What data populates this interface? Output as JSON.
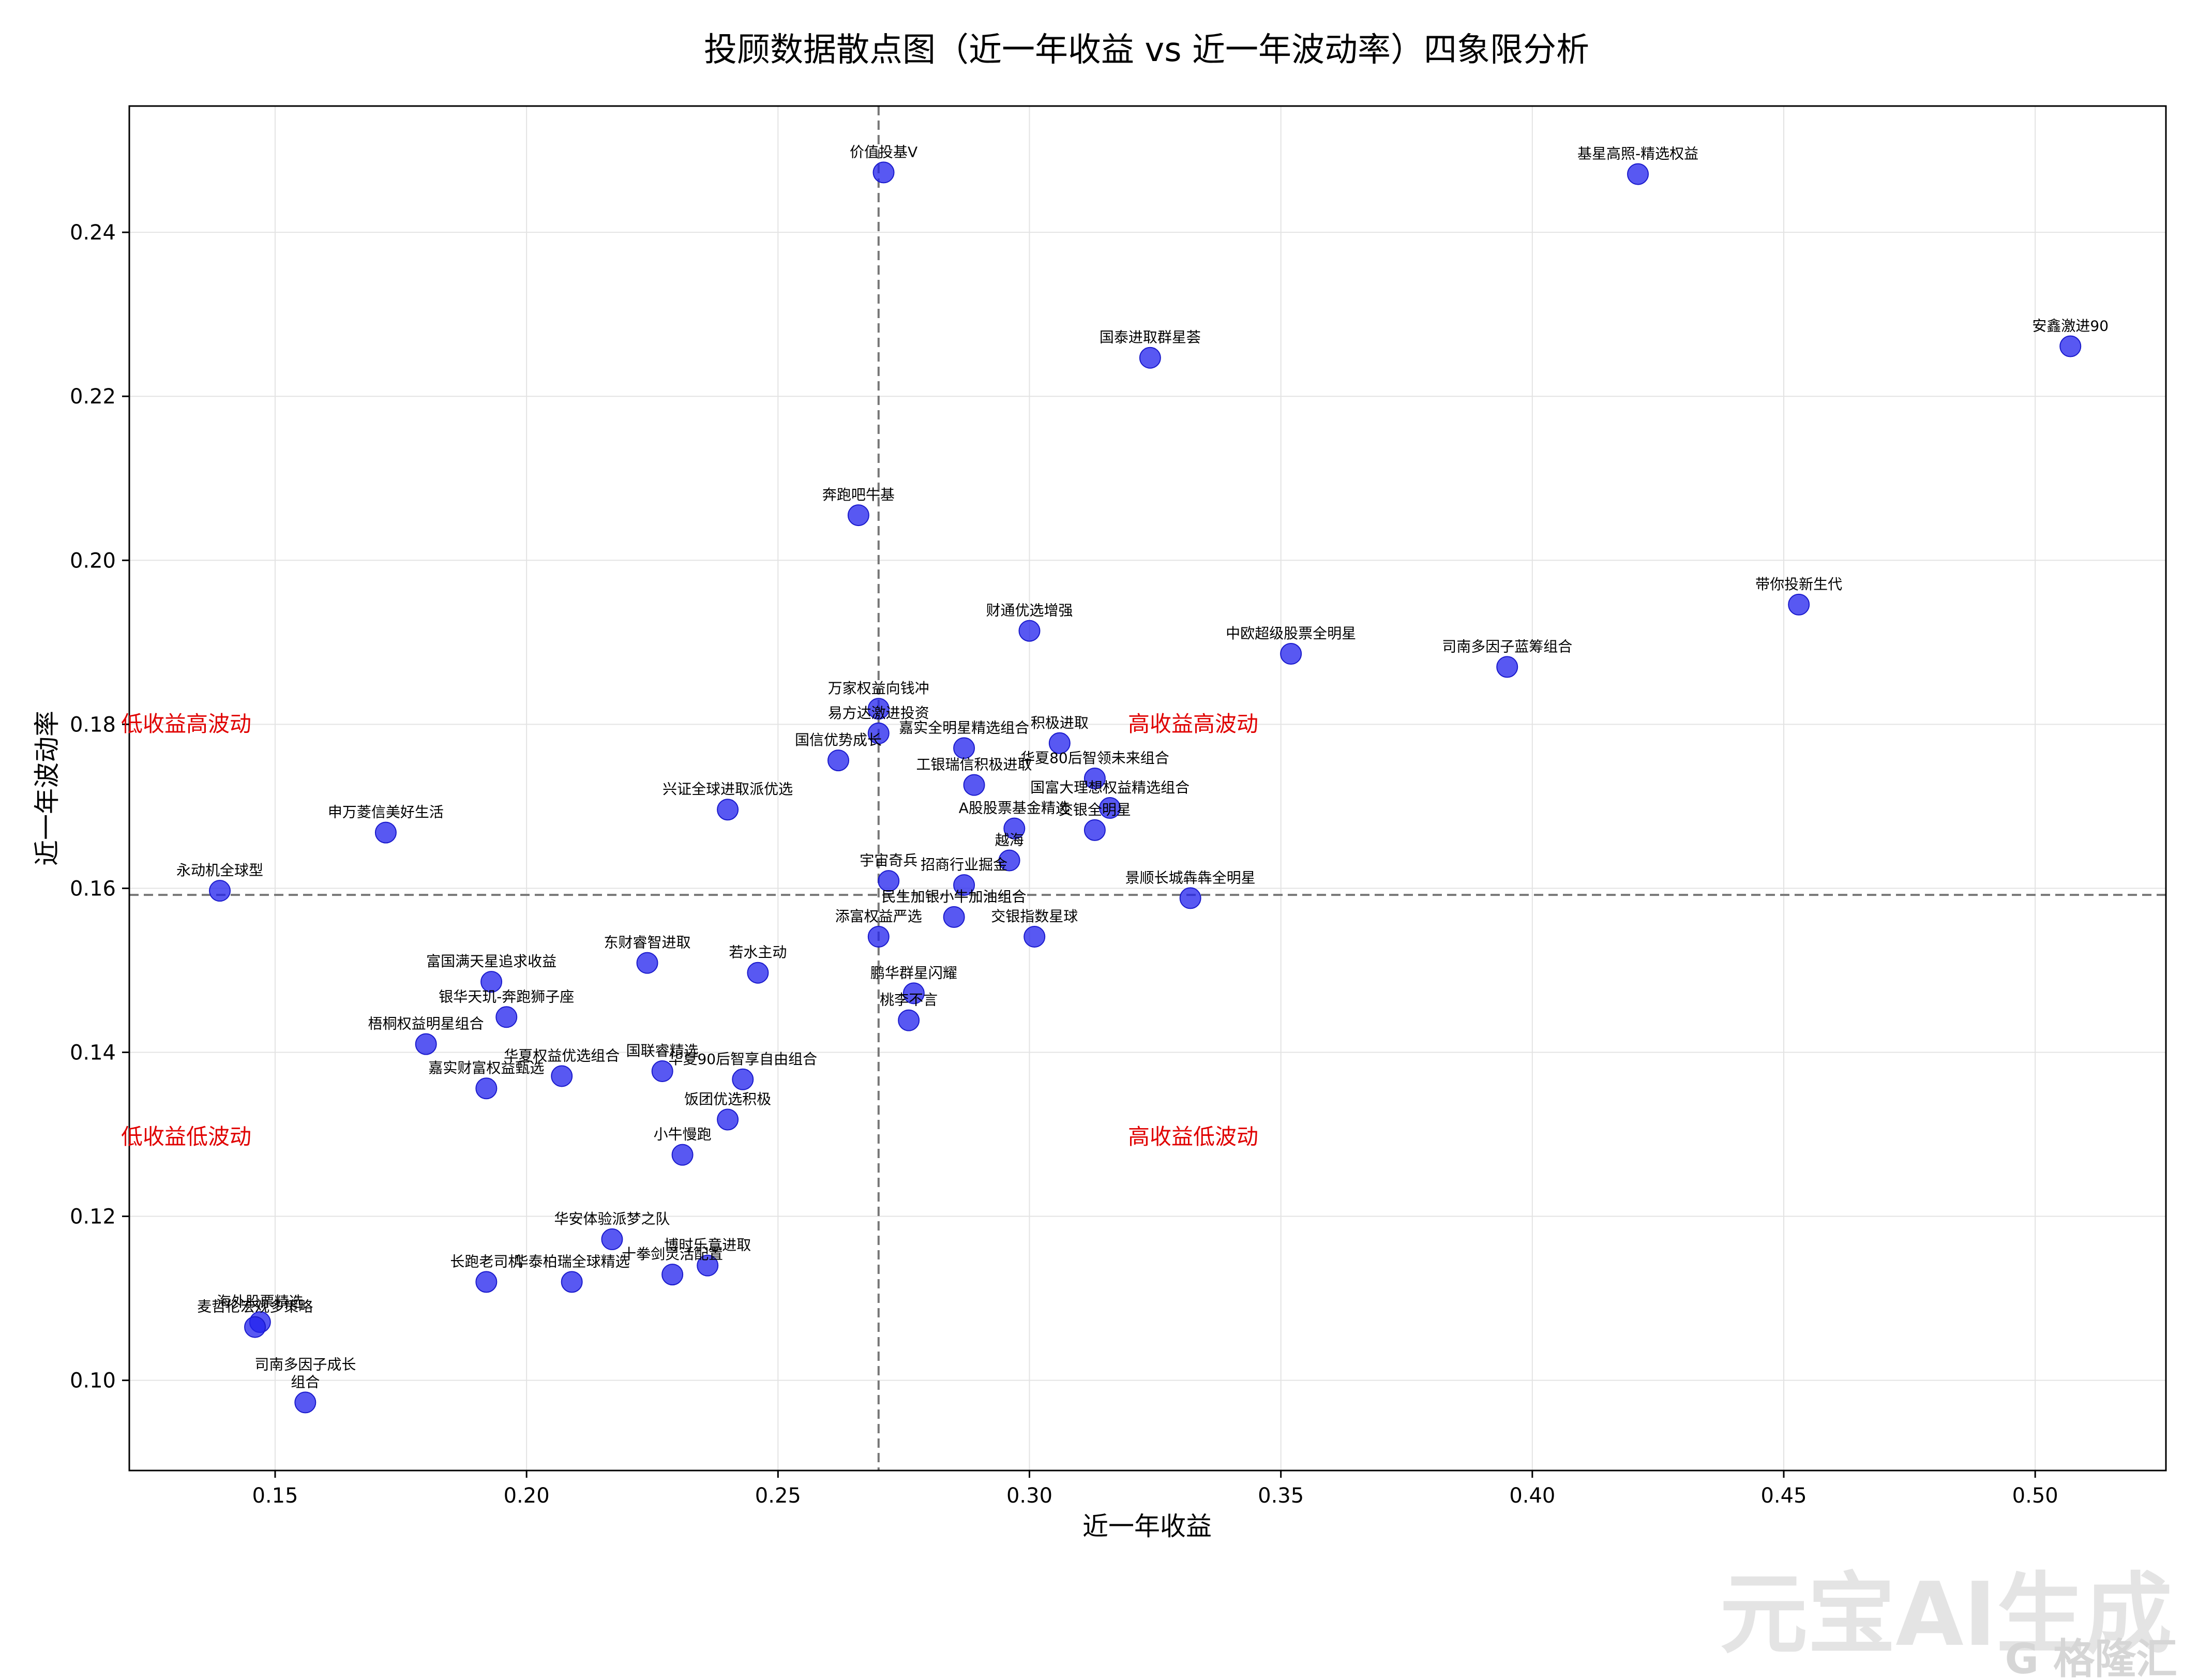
{
  "chart_data": {
    "type": "scatter",
    "title": "投顾数据散点图（近一年收益 vs 近一年波动率）四象限分析",
    "xlabel": "近一年收益",
    "ylabel": "近一年波动率",
    "xlim": [
      0.121,
      0.526
    ],
    "ylim": [
      0.089,
      0.2554
    ],
    "xticks": [
      "0.15",
      "0.20",
      "0.25",
      "0.30",
      "0.35",
      "0.40",
      "0.45",
      "0.50"
    ],
    "yticks": [
      "0.10",
      "0.12",
      "0.14",
      "0.16",
      "0.18",
      "0.20",
      "0.22",
      "0.24"
    ],
    "grid": true,
    "marker_color": "#2020ee",
    "divider_x": 0.27,
    "divider_y": 0.1592,
    "quadrant_labels": {
      "top_left": "低收益高波动",
      "top_right": "高收益高波动",
      "bottom_left": "低收益低波动",
      "bottom_right": "高收益低波动"
    },
    "points": [
      {
        "name": "价值投基V",
        "x": 0.271,
        "y": 0.2473
      },
      {
        "name": "基星高照-精选权益",
        "x": 0.421,
        "y": 0.2471
      },
      {
        "name": "安鑫激进90",
        "x": 0.507,
        "y": 0.2261
      },
      {
        "name": "国泰进取群星荟",
        "x": 0.324,
        "y": 0.2247
      },
      {
        "name": "奔跑吧牛基",
        "x": 0.266,
        "y": 0.2055
      },
      {
        "name": "带你投新生代",
        "x": 0.453,
        "y": 0.1946
      },
      {
        "name": "财通优选增强",
        "x": 0.3,
        "y": 0.1914
      },
      {
        "name": "中欧超级股票全明星",
        "x": 0.352,
        "y": 0.1886
      },
      {
        "name": "司南多因子蓝筹组合",
        "x": 0.395,
        "y": 0.187
      },
      {
        "name": "万家权益向钱冲",
        "x": 0.27,
        "y": 0.1819
      },
      {
        "name": "易方达激进投资",
        "x": 0.27,
        "y": 0.1789
      },
      {
        "name": "积极进取",
        "x": 0.306,
        "y": 0.1777
      },
      {
        "name": "嘉实全明星精选组合",
        "x": 0.287,
        "y": 0.1771
      },
      {
        "name": "国信优势成长",
        "x": 0.262,
        "y": 0.1756
      },
      {
        "name": "华夏80后智领未来组合",
        "x": 0.313,
        "y": 0.1734
      },
      {
        "name": "工银瑞信积极进取",
        "x": 0.289,
        "y": 0.1726
      },
      {
        "name": "国富大理想权益精选组合",
        "x": 0.316,
        "y": 0.1698
      },
      {
        "name": "兴证全球进取派优选",
        "x": 0.24,
        "y": 0.1696
      },
      {
        "name": "A股股票基金精选",
        "x": 0.297,
        "y": 0.1673
      },
      {
        "name": "交银全明星",
        "x": 0.313,
        "y": 0.1671
      },
      {
        "name": "申万菱信美好生活",
        "x": 0.172,
        "y": 0.1668
      },
      {
        "name": "越海",
        "x": 0.296,
        "y": 0.1634
      },
      {
        "name": "宇宙奇兵",
        "x": 0.272,
        "y": 0.1609
      },
      {
        "name": "招商行业掘金",
        "x": 0.287,
        "y": 0.1604
      },
      {
        "name": "永动机全球型",
        "x": 0.139,
        "y": 0.1597
      },
      {
        "name": "景顺长城犇犇全明星",
        "x": 0.332,
        "y": 0.1588
      },
      {
        "name": "民生加银小牛加油组合",
        "x": 0.285,
        "y": 0.1565
      },
      {
        "name": "添富权益严选",
        "x": 0.27,
        "y": 0.1541
      },
      {
        "name": "交银指数星球",
        "x": 0.301,
        "y": 0.1541
      },
      {
        "name": "东财睿智进取",
        "x": 0.224,
        "y": 0.1509
      },
      {
        "name": "若水主动",
        "x": 0.246,
        "y": 0.1497
      },
      {
        "name": "富国满天星追求收益",
        "x": 0.193,
        "y": 0.1486
      },
      {
        "name": "鹏华群星闪耀",
        "x": 0.277,
        "y": 0.1472
      },
      {
        "name": "银华天玑-奔跑狮子座",
        "x": 0.196,
        "y": 0.1443
      },
      {
        "name": "桃李不言",
        "x": 0.276,
        "y": 0.1439
      },
      {
        "name": "梧桐权益明星组合",
        "x": 0.18,
        "y": 0.141
      },
      {
        "name": "国联睿精选",
        "x": 0.227,
        "y": 0.1377
      },
      {
        "name": "华夏权益优选组合",
        "x": 0.207,
        "y": 0.1371
      },
      {
        "name": "华夏90后智享自由组合",
        "x": 0.243,
        "y": 0.1367
      },
      {
        "name": "嘉实财富权益甄选",
        "x": 0.192,
        "y": 0.1356
      },
      {
        "name": "饭团优选积极",
        "x": 0.24,
        "y": 0.1318
      },
      {
        "name": "小牛慢跑",
        "x": 0.231,
        "y": 0.1275
      },
      {
        "name": "华安体验派梦之队",
        "x": 0.217,
        "y": 0.1172
      },
      {
        "name": "博时乐意进取",
        "x": 0.236,
        "y": 0.114
      },
      {
        "name": "十拳剑灵活配置",
        "x": 0.229,
        "y": 0.1129
      },
      {
        "name": "长跑老司机",
        "x": 0.192,
        "y": 0.112
      },
      {
        "name": "华泰柏瑞全球精选",
        "x": 0.209,
        "y": 0.112
      },
      {
        "name": "海外股票精选",
        "x": 0.147,
        "y": 0.1071
      },
      {
        "name": "麦哲伦宏观多策略",
        "x": 0.146,
        "y": 0.1065
      },
      {
        "name": "司南多因子成长\n组合",
        "x": 0.156,
        "y": 0.0973
      }
    ]
  },
  "watermark": {
    "ai_text": "元宝AI生成",
    "brand_text": "G 格隆汇"
  }
}
